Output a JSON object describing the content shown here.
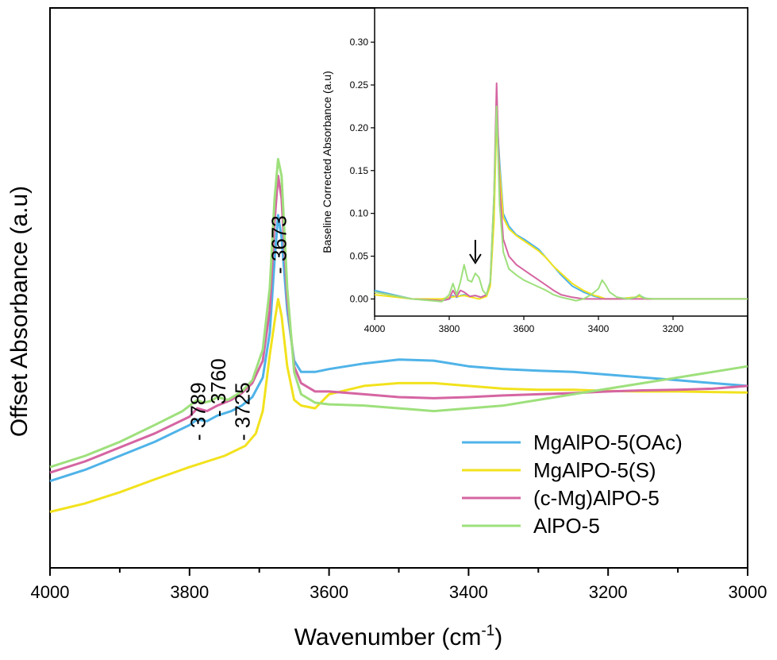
{
  "chart_data": [
    {
      "type": "line",
      "xlabel": "Wavenumber (cm",
      "xlabel_sup": "-1",
      "xlabel_close": ")",
      "ylabel": "Offset Absorbance (a.u)",
      "xlim": [
        4000,
        3000
      ],
      "ylim": [
        0,
        1
      ],
      "x_ticks": [
        "4000",
        "3800",
        "3600",
        "3400",
        "3200",
        "3000"
      ],
      "y_ticks_shown": false,
      "legend_position": "bottom-right",
      "peak_labels": [
        {
          "text": "- 3789",
          "x": 3789
        },
        {
          "text": "- 3760",
          "x": 3760
        },
        {
          "text": "- 3725",
          "x": 3725
        },
        {
          "text": "- 3673",
          "x": 3673
        }
      ],
      "series": [
        {
          "name": "MgAlPO-5(OAc)",
          "color": "#4fb3e8",
          "x": [
            4000,
            3950,
            3900,
            3850,
            3800,
            3789,
            3775,
            3760,
            3740,
            3725,
            3710,
            3695,
            3685,
            3678,
            3673,
            3668,
            3660,
            3650,
            3640,
            3620,
            3600,
            3550,
            3500,
            3450,
            3400,
            3350,
            3300,
            3250,
            3200,
            3150,
            3100,
            3050,
            3000
          ],
          "y": [
            0.155,
            0.175,
            0.2,
            0.225,
            0.255,
            0.265,
            0.262,
            0.272,
            0.28,
            0.29,
            0.305,
            0.34,
            0.42,
            0.55,
            0.63,
            0.59,
            0.46,
            0.37,
            0.35,
            0.35,
            0.355,
            0.365,
            0.372,
            0.37,
            0.36,
            0.355,
            0.352,
            0.35,
            0.345,
            0.34,
            0.335,
            0.33,
            0.325
          ]
        },
        {
          "name": "MgAlPO-5(S)",
          "color": "#f2e21d",
          "x": [
            4000,
            3950,
            3900,
            3850,
            3800,
            3750,
            3720,
            3705,
            3695,
            3685,
            3678,
            3673,
            3668,
            3660,
            3650,
            3640,
            3620,
            3600,
            3550,
            3500,
            3450,
            3400,
            3350,
            3300,
            3250,
            3200,
            3150,
            3100,
            3050,
            3000
          ],
          "y": [
            0.1,
            0.115,
            0.135,
            0.158,
            0.18,
            0.2,
            0.218,
            0.24,
            0.28,
            0.38,
            0.44,
            0.48,
            0.45,
            0.36,
            0.3,
            0.29,
            0.285,
            0.31,
            0.325,
            0.33,
            0.33,
            0.325,
            0.32,
            0.318,
            0.318,
            0.316,
            0.315,
            0.315,
            0.314,
            0.313
          ]
        },
        {
          "name": "(c-Mg)AlPO-5",
          "color": "#d565a2",
          "x": [
            4000,
            3950,
            3900,
            3850,
            3800,
            3789,
            3775,
            3760,
            3740,
            3725,
            3710,
            3695,
            3685,
            3678,
            3673,
            3668,
            3660,
            3650,
            3640,
            3620,
            3600,
            3550,
            3500,
            3450,
            3400,
            3350,
            3300,
            3250,
            3200,
            3150,
            3100,
            3050,
            3000
          ],
          "y": [
            0.17,
            0.19,
            0.215,
            0.24,
            0.27,
            0.285,
            0.28,
            0.29,
            0.3,
            0.312,
            0.33,
            0.37,
            0.46,
            0.62,
            0.7,
            0.66,
            0.48,
            0.36,
            0.33,
            0.315,
            0.315,
            0.31,
            0.305,
            0.303,
            0.305,
            0.308,
            0.31,
            0.312,
            0.315,
            0.317,
            0.318,
            0.32,
            0.325
          ]
        },
        {
          "name": "AlPO-5",
          "color": "#9ee07c",
          "x": [
            4000,
            3950,
            3900,
            3850,
            3810,
            3789,
            3780,
            3770,
            3760,
            3745,
            3725,
            3710,
            3695,
            3685,
            3678,
            3673,
            3668,
            3660,
            3650,
            3640,
            3620,
            3600,
            3550,
            3500,
            3450,
            3400,
            3350,
            3300,
            3250,
            3200,
            3150,
            3100,
            3050,
            3000
          ],
          "y": [
            0.18,
            0.2,
            0.225,
            0.255,
            0.28,
            0.3,
            0.295,
            0.298,
            0.305,
            0.3,
            0.315,
            0.335,
            0.39,
            0.5,
            0.66,
            0.73,
            0.7,
            0.5,
            0.35,
            0.31,
            0.295,
            0.292,
            0.29,
            0.285,
            0.28,
            0.285,
            0.29,
            0.3,
            0.31,
            0.32,
            0.33,
            0.34,
            0.35,
            0.36
          ]
        }
      ]
    },
    {
      "type": "line",
      "position": "inset-top-right",
      "xlabel": "",
      "ylabel": "Baseline Corrected Absorbance (a.u)",
      "xlim": [
        4000,
        3000
      ],
      "ylim": [
        -0.02,
        0.34
      ],
      "x_ticks": [
        "4000",
        "3800",
        "3600",
        "3400",
        "3200"
      ],
      "y_ticks": [
        "0.00",
        "0.05",
        "0.10",
        "0.15",
        "0.20",
        "0.25",
        "0.30"
      ],
      "arrow_annotation_x": 3730,
      "series": [
        {
          "name": "MgAlPO-5(OAc)",
          "color": "#4fb3e8",
          "x": [
            4000,
            3900,
            3820,
            3800,
            3790,
            3780,
            3770,
            3760,
            3745,
            3730,
            3715,
            3700,
            3690,
            3680,
            3673,
            3665,
            3655,
            3640,
            3620,
            3600,
            3580,
            3560,
            3540,
            3520,
            3500,
            3470,
            3440,
            3410,
            3400,
            3380,
            3350,
            3300,
            3290,
            3270,
            3200,
            3100,
            3000
          ],
          "y": [
            0.01,
            0.0,
            -0.002,
            0.0,
            0.004,
            0.002,
            0.004,
            0.005,
            0.003,
            0.004,
            0.002,
            0.005,
            0.02,
            0.1,
            0.22,
            0.16,
            0.1,
            0.085,
            0.075,
            0.07,
            0.064,
            0.058,
            0.048,
            0.038,
            0.028,
            0.015,
            0.008,
            0.003,
            0.002,
            0.0,
            0.0,
            0.002,
            0.004,
            0.0,
            0.0,
            0.0,
            0.0
          ]
        },
        {
          "name": "MgAlPO-5(S)",
          "color": "#f2e21d",
          "x": [
            4000,
            3900,
            3820,
            3800,
            3780,
            3760,
            3740,
            3720,
            3700,
            3690,
            3680,
            3673,
            3665,
            3655,
            3640,
            3620,
            3600,
            3580,
            3560,
            3540,
            3520,
            3500,
            3470,
            3440,
            3410,
            3400,
            3380,
            3350,
            3300,
            3290,
            3270,
            3200,
            3100,
            3000
          ],
          "y": [
            0.005,
            0.0,
            0.0,
            0.002,
            0.003,
            0.004,
            0.002,
            0.0,
            0.003,
            0.015,
            0.09,
            0.21,
            0.15,
            0.095,
            0.082,
            0.074,
            0.068,
            0.062,
            0.056,
            0.048,
            0.038,
            0.03,
            0.018,
            0.01,
            0.004,
            0.003,
            0.0,
            0.0,
            0.002,
            0.003,
            0.0,
            0.0,
            0.0,
            0.0
          ]
        },
        {
          "name": "(c-Mg)AlPO-5",
          "color": "#d565a2",
          "x": [
            4000,
            3900,
            3820,
            3800,
            3790,
            3780,
            3770,
            3760,
            3745,
            3730,
            3715,
            3700,
            3690,
            3680,
            3673,
            3665,
            3655,
            3640,
            3620,
            3600,
            3580,
            3560,
            3540,
            3520,
            3500,
            3470,
            3440,
            3410,
            3400,
            3380,
            3350,
            3300,
            3200,
            3100,
            3000
          ],
          "y": [
            0.008,
            0.0,
            -0.002,
            0.0,
            0.01,
            0.003,
            0.01,
            0.008,
            0.003,
            0.004,
            0.002,
            0.005,
            0.02,
            0.12,
            0.252,
            0.13,
            0.07,
            0.05,
            0.04,
            0.034,
            0.028,
            0.022,
            0.016,
            0.01,
            0.005,
            0.002,
            0.0,
            0.0,
            0.0,
            0.0,
            0.0,
            0.0,
            0.0,
            0.0,
            0.0
          ]
        },
        {
          "name": "AlPO-5",
          "color": "#9ee07c",
          "x": [
            4000,
            3900,
            3820,
            3800,
            3790,
            3780,
            3770,
            3760,
            3750,
            3740,
            3730,
            3720,
            3710,
            3700,
            3690,
            3680,
            3673,
            3665,
            3655,
            3640,
            3620,
            3600,
            3580,
            3560,
            3540,
            3520,
            3500,
            3480,
            3460,
            3440,
            3420,
            3400,
            3390,
            3380,
            3370,
            3350,
            3320,
            3300,
            3290,
            3280,
            3250,
            3200,
            3100,
            3000
          ],
          "y": [
            0.008,
            0.0,
            -0.003,
            0.005,
            0.018,
            0.005,
            0.02,
            0.04,
            0.022,
            0.02,
            0.03,
            0.025,
            0.01,
            0.005,
            0.02,
            0.12,
            0.225,
            0.11,
            0.055,
            0.035,
            0.028,
            0.022,
            0.018,
            0.014,
            0.01,
            0.005,
            0.002,
            0.0,
            -0.002,
            0.0,
            0.005,
            0.012,
            0.022,
            0.016,
            0.008,
            0.002,
            0.0,
            0.002,
            0.005,
            0.001,
            0.0,
            0.0,
            0.0,
            0.0
          ]
        }
      ]
    }
  ]
}
